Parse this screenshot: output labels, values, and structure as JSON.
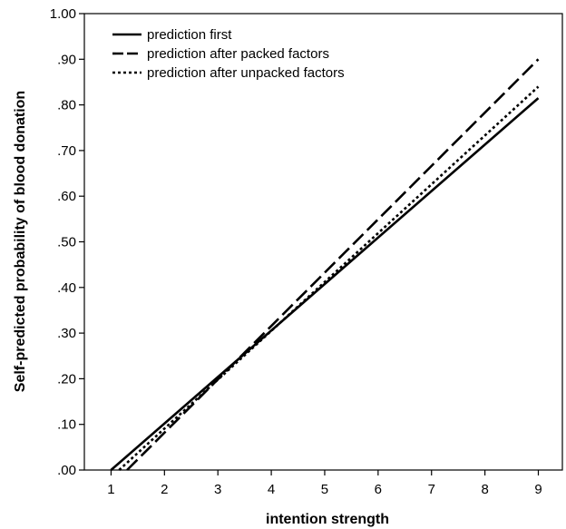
{
  "chart_data": {
    "type": "line",
    "title": "",
    "xlabel": "intention strength",
    "ylabel": "Self-predicted probability of blood donation",
    "xlim": [
      0.5,
      9.45
    ],
    "ylim": [
      0.0,
      1.0
    ],
    "x_ticks": [
      1,
      2,
      3,
      4,
      5,
      6,
      7,
      8,
      9
    ],
    "x_tick_labels": [
      "1",
      "2",
      "3",
      "4",
      "5",
      "6",
      "7",
      "8",
      "9"
    ],
    "y_ticks": [
      0.0,
      0.1,
      0.2,
      0.3,
      0.4,
      0.5,
      0.6,
      0.7,
      0.8,
      0.9,
      1.0
    ],
    "y_tick_labels": [
      ".00",
      ".10",
      ".20",
      ".30",
      ".40",
      ".50",
      ".60",
      ".70",
      ".80",
      ".90",
      "1.00"
    ],
    "grid": false,
    "legend_position": "top-left",
    "series": [
      {
        "name": "prediction first",
        "style": "solid",
        "points": [
          [
            1.0,
            0.0
          ],
          [
            9.0,
            0.815
          ]
        ]
      },
      {
        "name": "prediction after packed factors",
        "style": "dashed",
        "points": [
          [
            1.3,
            0.0
          ],
          [
            9.0,
            0.9
          ]
        ]
      },
      {
        "name": "prediction after unpacked factors",
        "style": "dotted",
        "points": [
          [
            1.15,
            0.0
          ],
          [
            9.0,
            0.84
          ]
        ]
      }
    ]
  }
}
